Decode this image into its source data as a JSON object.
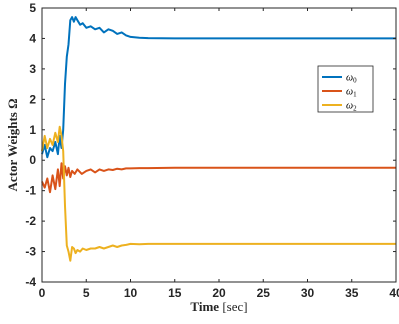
{
  "chart_data": {
    "type": "line",
    "xlabel_main": "Time",
    "xlabel_unit": "[sec]",
    "ylabel": "Actor Weights Ω",
    "xlim": [
      0,
      40
    ],
    "ylim": [
      -4,
      5
    ],
    "xticks": [
      "0",
      "5",
      "10",
      "15",
      "20",
      "25",
      "30",
      "35",
      "40"
    ],
    "yticks": [
      "-4",
      "-3",
      "-2",
      "-1",
      "0",
      "1",
      "2",
      "3",
      "4",
      "5"
    ],
    "grid": false,
    "legend_position": "right",
    "series": [
      {
        "name": "ω",
        "subscript": "0",
        "color": "#0072BD",
        "x": [
          0,
          0.3,
          0.6,
          0.9,
          1.2,
          1.5,
          1.8,
          2.0,
          2.2,
          2.4,
          2.6,
          2.8,
          3.0,
          3.2,
          3.4,
          3.6,
          3.8,
          4.0,
          4.3,
          4.6,
          5.0,
          5.5,
          6.0,
          6.5,
          7.0,
          7.5,
          8.0,
          8.5,
          9.0,
          9.5,
          10.0,
          11,
          12,
          15,
          20,
          25,
          30,
          35,
          40
        ],
        "y": [
          0.2,
          0.5,
          0.1,
          0.4,
          0.3,
          0.6,
          0.2,
          0.8,
          0.4,
          1.0,
          2.5,
          3.4,
          3.8,
          4.6,
          4.7,
          4.55,
          4.7,
          4.6,
          4.45,
          4.5,
          4.35,
          4.4,
          4.3,
          4.35,
          4.2,
          4.3,
          4.25,
          4.15,
          4.2,
          4.1,
          4.05,
          4.02,
          4.01,
          4.0,
          4.0,
          4.0,
          4.0,
          4.0,
          4.0
        ]
      },
      {
        "name": "ω",
        "subscript": "1",
        "color": "#D95319",
        "x": [
          0,
          0.3,
          0.6,
          0.9,
          1.2,
          1.5,
          1.8,
          2.0,
          2.2,
          2.4,
          2.6,
          2.8,
          3.0,
          3.2,
          3.4,
          3.7,
          4.0,
          4.5,
          5.0,
          5.5,
          6.0,
          6.5,
          7.0,
          7.5,
          8.0,
          8.5,
          9.0,
          9.5,
          10.0,
          11,
          12,
          15,
          20,
          25,
          30,
          35,
          40
        ],
        "y": [
          -0.7,
          -0.9,
          -0.6,
          -1.05,
          -0.5,
          -0.95,
          -0.3,
          -0.85,
          -0.1,
          -0.6,
          -0.2,
          -0.5,
          -0.25,
          -0.55,
          -0.35,
          -0.45,
          -0.3,
          -0.45,
          -0.35,
          -0.3,
          -0.4,
          -0.3,
          -0.35,
          -0.3,
          -0.32,
          -0.28,
          -0.3,
          -0.27,
          -0.27,
          -0.26,
          -0.26,
          -0.25,
          -0.25,
          -0.25,
          -0.25,
          -0.25,
          -0.25
        ]
      },
      {
        "name": "ω",
        "subscript": "2",
        "color": "#EDB120",
        "x": [
          0,
          0.3,
          0.6,
          0.9,
          1.2,
          1.5,
          1.8,
          2.0,
          2.2,
          2.4,
          2.6,
          2.8,
          3.0,
          3.2,
          3.4,
          3.6,
          3.8,
          4.0,
          4.3,
          4.6,
          5.0,
          5.5,
          6.0,
          6.5,
          7.0,
          7.5,
          8.0,
          8.5,
          9.0,
          9.5,
          10.0,
          11,
          12,
          15,
          20,
          25,
          30,
          35,
          40
        ],
        "y": [
          0.3,
          0.8,
          0.4,
          0.7,
          0.5,
          0.9,
          0.6,
          1.1,
          0.8,
          0.3,
          -1.5,
          -2.8,
          -3.0,
          -3.3,
          -2.85,
          -2.9,
          -3.05,
          -2.95,
          -3.0,
          -2.9,
          -2.95,
          -2.9,
          -2.9,
          -2.85,
          -2.9,
          -2.85,
          -2.8,
          -2.85,
          -2.8,
          -2.78,
          -2.75,
          -2.76,
          -2.75,
          -2.75,
          -2.75,
          -2.75,
          -2.75,
          -2.75,
          -2.75
        ]
      }
    ]
  }
}
